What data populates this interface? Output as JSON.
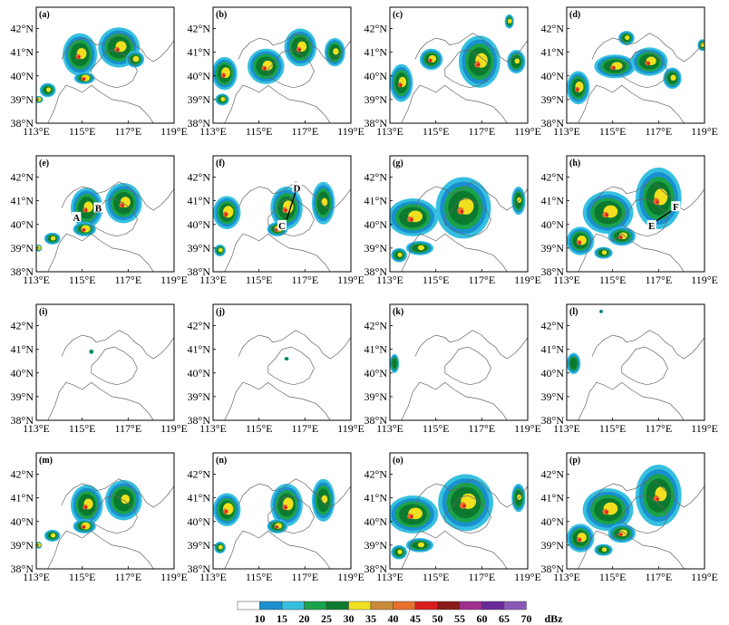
{
  "panels": [
    {
      "label": "(a)",
      "blobs": [
        {
          "x": 114.9,
          "y": 40.9,
          "rx": 0.75,
          "ry": 0.9,
          "core": 0.5
        },
        {
          "x": 116.6,
          "y": 41.2,
          "rx": 0.9,
          "ry": 0.85,
          "core": 0.5
        },
        {
          "x": 115.1,
          "y": 39.9,
          "rx": 0.45,
          "ry": 0.25,
          "core": 0.7
        },
        {
          "x": 113.5,
          "y": 39.4,
          "rx": 0.35,
          "ry": 0.3,
          "core": 0.2
        },
        {
          "x": 117.3,
          "y": 40.7,
          "rx": 0.4,
          "ry": 0.35,
          "core": 0.4
        },
        {
          "x": 113.1,
          "y": 39.0,
          "rx": 0.2,
          "ry": 0.15,
          "core": 0.2
        }
      ]
    },
    {
      "label": "(b)",
      "blobs": [
        {
          "x": 113.5,
          "y": 40.1,
          "rx": 0.55,
          "ry": 0.7,
          "core": 0.6
        },
        {
          "x": 115.3,
          "y": 40.4,
          "rx": 0.8,
          "ry": 0.75,
          "core": 0.5
        },
        {
          "x": 116.8,
          "y": 41.2,
          "rx": 0.7,
          "ry": 0.8,
          "core": 0.5
        },
        {
          "x": 118.3,
          "y": 41.0,
          "rx": 0.45,
          "ry": 0.6,
          "core": 0.3
        },
        {
          "x": 113.4,
          "y": 39.0,
          "rx": 0.3,
          "ry": 0.25,
          "core": 0.2
        }
      ]
    },
    {
      "label": "(c)",
      "blobs": [
        {
          "x": 113.5,
          "y": 39.7,
          "rx": 0.5,
          "ry": 0.8,
          "core": 0.5
        },
        {
          "x": 114.8,
          "y": 40.7,
          "rx": 0.5,
          "ry": 0.45,
          "core": 0.5
        },
        {
          "x": 116.9,
          "y": 40.6,
          "rx": 0.9,
          "ry": 1.1,
          "core": 0.6
        },
        {
          "x": 118.5,
          "y": 40.6,
          "rx": 0.4,
          "ry": 0.5,
          "core": 0.2
        },
        {
          "x": 118.2,
          "y": 42.3,
          "rx": 0.2,
          "ry": 0.3,
          "core": 0.2
        }
      ]
    },
    {
      "label": "(d)",
      "blobs": [
        {
          "x": 113.5,
          "y": 39.5,
          "rx": 0.5,
          "ry": 0.7,
          "core": 0.6
        },
        {
          "x": 115.1,
          "y": 40.4,
          "rx": 0.9,
          "ry": 0.5,
          "core": 0.5
        },
        {
          "x": 116.6,
          "y": 40.6,
          "rx": 0.8,
          "ry": 0.6,
          "core": 0.5
        },
        {
          "x": 117.6,
          "y": 39.9,
          "rx": 0.4,
          "ry": 0.45,
          "core": 0.3
        },
        {
          "x": 115.6,
          "y": 41.6,
          "rx": 0.35,
          "ry": 0.3,
          "core": 0.2
        },
        {
          "x": 118.9,
          "y": 41.3,
          "rx": 0.2,
          "ry": 0.25,
          "core": 0.2
        }
      ]
    },
    {
      "label": "(e)",
      "annotations": [
        {
          "text": "A",
          "x": 114.75,
          "y": 40.3
        },
        {
          "text": "B",
          "x": 115.7,
          "y": 40.7
        }
      ],
      "blobs": [
        {
          "x": 115.2,
          "y": 40.7,
          "rx": 0.7,
          "ry": 0.85,
          "core": 0.5
        },
        {
          "x": 116.8,
          "y": 40.9,
          "rx": 0.8,
          "ry": 0.85,
          "core": 0.5
        },
        {
          "x": 115.1,
          "y": 39.8,
          "rx": 0.5,
          "ry": 0.3,
          "core": 0.7
        },
        {
          "x": 113.7,
          "y": 39.4,
          "rx": 0.35,
          "ry": 0.25,
          "core": 0.2
        },
        {
          "x": 113.1,
          "y": 39.0,
          "rx": 0.15,
          "ry": 0.15,
          "core": 0.2
        }
      ]
    },
    {
      "label": "(f)",
      "line": {
        "x1": 116.2,
        "y1": 40.2,
        "x2": 116.6,
        "y2": 41.4
      },
      "annotations": [
        {
          "text": "D",
          "x": 116.65,
          "y": 41.55
        },
        {
          "text": "C",
          "x": 116.0,
          "y": 39.95
        }
      ],
      "blobs": [
        {
          "x": 113.6,
          "y": 40.5,
          "rx": 0.6,
          "ry": 0.7,
          "core": 0.7
        },
        {
          "x": 116.2,
          "y": 40.7,
          "rx": 0.7,
          "ry": 0.9,
          "core": 0.6
        },
        {
          "x": 117.8,
          "y": 40.9,
          "rx": 0.5,
          "ry": 0.9,
          "core": 0.3
        },
        {
          "x": 115.8,
          "y": 39.8,
          "rx": 0.45,
          "ry": 0.3,
          "core": 0.6
        },
        {
          "x": 113.3,
          "y": 38.9,
          "rx": 0.25,
          "ry": 0.25,
          "core": 0.2
        }
      ]
    },
    {
      "label": "(g)",
      "blobs": [
        {
          "x": 114.0,
          "y": 40.3,
          "rx": 1.1,
          "ry": 0.8,
          "core": 0.6
        },
        {
          "x": 116.2,
          "y": 40.7,
          "rx": 1.2,
          "ry": 1.3,
          "core": 0.6
        },
        {
          "x": 114.3,
          "y": 39.0,
          "rx": 0.6,
          "ry": 0.3,
          "core": 0.3
        },
        {
          "x": 118.6,
          "y": 41.0,
          "rx": 0.3,
          "ry": 0.6,
          "core": 0.2
        },
        {
          "x": 113.4,
          "y": 38.7,
          "rx": 0.35,
          "ry": 0.3,
          "core": 0.2
        }
      ]
    },
    {
      "label": "(h)",
      "line": {
        "x1": 116.9,
        "y1": 40.15,
        "x2": 117.6,
        "y2": 40.6
      },
      "annotations": [
        {
          "text": "E",
          "x": 116.7,
          "y": 39.95
        },
        {
          "text": "F",
          "x": 117.75,
          "y": 40.75
        }
      ],
      "blobs": [
        {
          "x": 114.8,
          "y": 40.5,
          "rx": 1.1,
          "ry": 0.9,
          "core": 0.6
        },
        {
          "x": 117.0,
          "y": 41.1,
          "rx": 1.0,
          "ry": 1.3,
          "core": 0.6
        },
        {
          "x": 113.6,
          "y": 39.3,
          "rx": 0.6,
          "ry": 0.6,
          "core": 0.6
        },
        {
          "x": 115.4,
          "y": 39.5,
          "rx": 0.6,
          "ry": 0.4,
          "core": 0.5
        },
        {
          "x": 114.6,
          "y": 38.8,
          "rx": 0.4,
          "ry": 0.25,
          "core": 0.2
        }
      ]
    },
    {
      "label": "(i)",
      "blobs": [
        {
          "x": 115.4,
          "y": 40.9,
          "rx": 0.1,
          "ry": 0.1,
          "core": 0.0
        }
      ]
    },
    {
      "label": "(j)",
      "blobs": [
        {
          "x": 116.2,
          "y": 40.6,
          "rx": 0.1,
          "ry": 0.08,
          "core": 0.0
        }
      ]
    },
    {
      "label": "(k)",
      "blobs": [
        {
          "x": 113.2,
          "y": 40.4,
          "rx": 0.2,
          "ry": 0.4,
          "core": 0.0
        }
      ]
    },
    {
      "label": "(l)",
      "blobs": [
        {
          "x": 113.3,
          "y": 40.4,
          "rx": 0.3,
          "ry": 0.45,
          "core": 0.0
        },
        {
          "x": 114.5,
          "y": 42.6,
          "rx": 0.08,
          "ry": 0.08,
          "core": 0.0
        }
      ]
    },
    {
      "label": "(m)",
      "blobs": [
        {
          "x": 115.2,
          "y": 40.7,
          "rx": 0.7,
          "ry": 0.85,
          "core": 0.5
        },
        {
          "x": 116.8,
          "y": 40.9,
          "rx": 0.8,
          "ry": 0.85,
          "core": 0.4
        },
        {
          "x": 115.1,
          "y": 39.8,
          "rx": 0.5,
          "ry": 0.3,
          "core": 0.7
        },
        {
          "x": 113.7,
          "y": 39.4,
          "rx": 0.35,
          "ry": 0.25,
          "core": 0.2
        },
        {
          "x": 113.1,
          "y": 39.0,
          "rx": 0.15,
          "ry": 0.15,
          "core": 0.2
        }
      ]
    },
    {
      "label": "(n)",
      "blobs": [
        {
          "x": 113.6,
          "y": 40.5,
          "rx": 0.6,
          "ry": 0.7,
          "core": 0.7
        },
        {
          "x": 116.2,
          "y": 40.7,
          "rx": 0.7,
          "ry": 0.9,
          "core": 0.6
        },
        {
          "x": 117.8,
          "y": 40.9,
          "rx": 0.5,
          "ry": 0.9,
          "core": 0.3
        },
        {
          "x": 115.8,
          "y": 39.8,
          "rx": 0.45,
          "ry": 0.3,
          "core": 0.5
        },
        {
          "x": 113.3,
          "y": 38.9,
          "rx": 0.25,
          "ry": 0.25,
          "core": 0.2
        }
      ]
    },
    {
      "label": "(o)",
      "blobs": [
        {
          "x": 114.0,
          "y": 40.3,
          "rx": 1.1,
          "ry": 0.8,
          "core": 0.6
        },
        {
          "x": 116.3,
          "y": 40.8,
          "rx": 1.2,
          "ry": 1.2,
          "core": 0.6
        },
        {
          "x": 114.3,
          "y": 39.0,
          "rx": 0.6,
          "ry": 0.3,
          "core": 0.3
        },
        {
          "x": 118.6,
          "y": 41.0,
          "rx": 0.3,
          "ry": 0.6,
          "core": 0.2
        },
        {
          "x": 113.4,
          "y": 38.7,
          "rx": 0.35,
          "ry": 0.3,
          "core": 0.2
        }
      ]
    },
    {
      "label": "(p)",
      "blobs": [
        {
          "x": 114.8,
          "y": 40.5,
          "rx": 1.1,
          "ry": 0.9,
          "core": 0.6
        },
        {
          "x": 117.0,
          "y": 41.1,
          "rx": 1.0,
          "ry": 1.3,
          "core": 0.5
        },
        {
          "x": 113.6,
          "y": 39.3,
          "rx": 0.6,
          "ry": 0.6,
          "core": 0.6
        },
        {
          "x": 115.4,
          "y": 39.5,
          "rx": 0.6,
          "ry": 0.4,
          "core": 0.5
        },
        {
          "x": 114.6,
          "y": 38.8,
          "rx": 0.4,
          "ry": 0.25,
          "core": 0.2
        }
      ]
    }
  ],
  "axes": {
    "lon_range": [
      113,
      119
    ],
    "lat_range": [
      38,
      42.9
    ],
    "x_ticks": [
      "113°E",
      "115°E",
      "117°E",
      "119°E"
    ],
    "x_tick_values": [
      113,
      115,
      117,
      119
    ],
    "y_ticks": [
      "38°N",
      "39°N",
      "40°N",
      "41°N",
      "42°N"
    ],
    "y_tick_values": [
      38,
      39,
      40,
      41,
      42
    ]
  },
  "boundary": {
    "description_color": "#555555",
    "points": [
      [
        114.1,
        40.7
      ],
      [
        114.3,
        41.1
      ],
      [
        114.6,
        41.4
      ],
      [
        115.0,
        41.6
      ],
      [
        115.4,
        41.5
      ],
      [
        115.6,
        41.3
      ],
      [
        116.0,
        41.4
      ],
      [
        116.3,
        41.6
      ],
      [
        116.6,
        41.8
      ],
      [
        117.0,
        41.6
      ],
      [
        117.3,
        41.3
      ],
      [
        117.6,
        41.1
      ],
      [
        117.8,
        40.8
      ],
      [
        118.1,
        40.6
      ],
      [
        118.4,
        40.8
      ],
      [
        118.7,
        41.1
      ],
      [
        119.0,
        41.5
      ]
    ],
    "inner": [
      [
        115.4,
        40.3
      ],
      [
        115.7,
        40.6
      ],
      [
        116.0,
        41.0
      ],
      [
        116.4,
        41.1
      ],
      [
        116.8,
        40.9
      ],
      [
        117.2,
        40.6
      ],
      [
        117.4,
        40.2
      ],
      [
        117.2,
        39.8
      ],
      [
        116.9,
        39.6
      ],
      [
        116.5,
        39.5
      ],
      [
        116.1,
        39.6
      ],
      [
        115.7,
        39.8
      ],
      [
        115.4,
        40.0
      ],
      [
        115.4,
        40.3
      ]
    ],
    "south": [
      [
        113.5,
        38.0
      ],
      [
        113.8,
        38.6
      ],
      [
        114.0,
        39.2
      ],
      [
        114.3,
        39.6
      ],
      [
        114.6,
        39.5
      ],
      [
        115.0,
        39.3
      ],
      [
        115.4,
        39.6
      ],
      [
        115.8,
        39.3
      ],
      [
        116.3,
        39.0
      ],
      [
        116.9,
        38.9
      ],
      [
        117.5,
        38.7
      ],
      [
        117.9,
        38.3
      ],
      [
        118.1,
        38.0
      ]
    ]
  },
  "colorbar": {
    "colors": [
      "#ffffff",
      "#1a8fd0",
      "#36c0e0",
      "#1aa34a",
      "#0c7a2e",
      "#f0e020",
      "#c98a3a",
      "#e8702a",
      "#d81e1e",
      "#8b1a1a",
      "#a03090",
      "#6a2a9a",
      "#8a5ab8"
    ],
    "labels": [
      "10",
      "15",
      "20",
      "25",
      "30",
      "35",
      "40",
      "45",
      "50",
      "55",
      "60",
      "65",
      "70"
    ],
    "unit": "dBz"
  },
  "palette": {
    "frame": "#000000",
    "boundary": "#666666",
    "light": "#36c0e0",
    "blue": "#1a8fd0",
    "green": "#1aa34a",
    "dark_green": "#0c7a2e",
    "yellow": "#f0e020",
    "orange": "#e8702a",
    "red": "#d81e1e"
  }
}
